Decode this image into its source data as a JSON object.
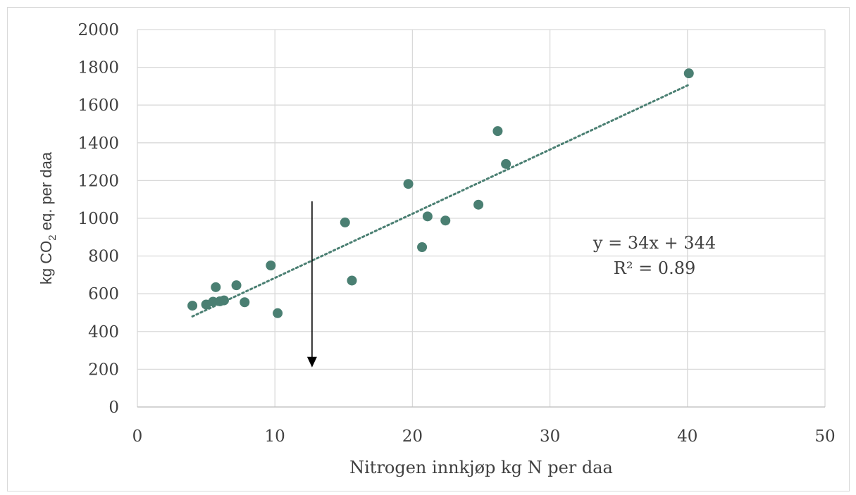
{
  "chart_data": {
    "type": "scatter",
    "title": "",
    "xlabel": "Nitrogen innkjøp kg N per daa",
    "ylabel_parts": {
      "pre": "kg CO",
      "sub": "2",
      "post": " eq. per daa"
    },
    "xlim": [
      0,
      50
    ],
    "ylim": [
      0,
      2000
    ],
    "x_ticks": [
      0,
      10,
      20,
      30,
      40,
      50
    ],
    "y_ticks": [
      0,
      200,
      400,
      600,
      800,
      1000,
      1200,
      1400,
      1600,
      1800,
      2000
    ],
    "grid": true,
    "marker_color": "#4a7f72",
    "trend_color": "#4a7f72",
    "series": [
      {
        "points": [
          {
            "x": 4.0,
            "y": 537
          },
          {
            "x": 5.0,
            "y": 543
          },
          {
            "x": 5.5,
            "y": 558
          },
          {
            "x": 5.7,
            "y": 635
          },
          {
            "x": 6.0,
            "y": 560
          },
          {
            "x": 6.3,
            "y": 565
          },
          {
            "x": 7.2,
            "y": 645
          },
          {
            "x": 7.8,
            "y": 555
          },
          {
            "x": 9.7,
            "y": 750
          },
          {
            "x": 10.2,
            "y": 497
          },
          {
            "x": 15.1,
            "y": 978
          },
          {
            "x": 15.6,
            "y": 670
          },
          {
            "x": 19.7,
            "y": 1182
          },
          {
            "x": 20.7,
            "y": 847
          },
          {
            "x": 21.1,
            "y": 1010
          },
          {
            "x": 22.4,
            "y": 988
          },
          {
            "x": 24.8,
            "y": 1072
          },
          {
            "x": 26.2,
            "y": 1462
          },
          {
            "x": 26.8,
            "y": 1288
          },
          {
            "x": 40.1,
            "y": 1768
          }
        ]
      }
    ],
    "trendline": {
      "type": "linear",
      "slope": 34,
      "intercept": 344,
      "x_range": [
        4.0,
        40.1
      ],
      "equation": "y = 34x + 344",
      "r2": "R² = 0.89"
    },
    "annotations": [
      {
        "type": "arrow",
        "direction": "down",
        "from": {
          "x": 12.7,
          "y": 1090
        },
        "to": {
          "x": 12.7,
          "y": 210
        },
        "color": "#000000"
      }
    ]
  }
}
